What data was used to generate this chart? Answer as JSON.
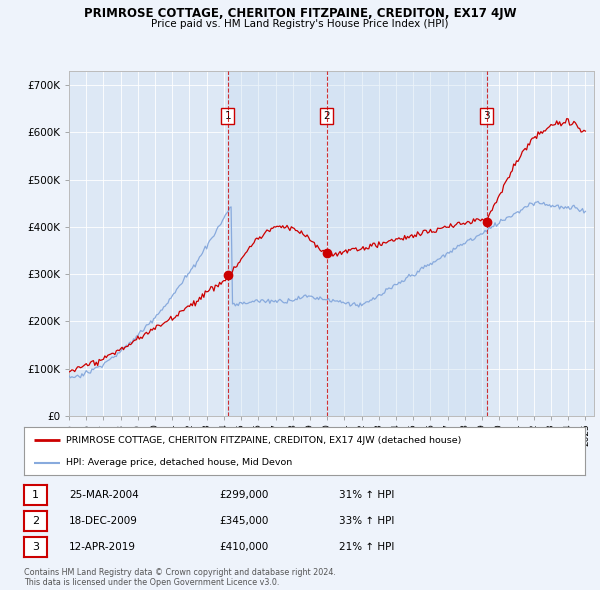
{
  "title": "PRIMROSE COTTAGE, CHERITON FITZPAINE, CREDITON, EX17 4JW",
  "subtitle": "Price paid vs. HM Land Registry's House Price Index (HPI)",
  "ylabel_ticks": [
    "£0",
    "£100K",
    "£200K",
    "£300K",
    "£400K",
    "£500K",
    "£600K",
    "£700K"
  ],
  "ytick_vals": [
    0,
    100000,
    200000,
    300000,
    400000,
    500000,
    600000,
    700000
  ],
  "ylim": [
    0,
    730000
  ],
  "xlim_start": 1995.0,
  "xlim_end": 2025.5,
  "transactions": [
    {
      "label": "1",
      "date": "25-MAR-2004",
      "price": "£299,000",
      "year": 2004.23,
      "pct": "31%",
      "arrow": "↑"
    },
    {
      "label": "2",
      "date": "18-DEC-2009",
      "price": "£345,000",
      "year": 2009.97,
      "pct": "33%",
      "arrow": "↑"
    },
    {
      "label": "3",
      "date": "12-APR-2019",
      "price": "£410,000",
      "year": 2019.28,
      "pct": "21%",
      "arrow": "↑"
    }
  ],
  "legend_entries": [
    {
      "label": "PRIMROSE COTTAGE, CHERITON FITZPAINE, CREDITON, EX17 4JW (detached house)",
      "color": "#cc0000"
    },
    {
      "label": "HPI: Average price, detached house, Mid Devon",
      "color": "#88aadd"
    }
  ],
  "footer": "Contains HM Land Registry data © Crown copyright and database right 2024.\nThis data is licensed under the Open Government Licence v3.0.",
  "bg_color": "#eef3fb",
  "plot_bg": "#dde8f5",
  "grid_color": "#ffffff",
  "vline_color": "#cc0000",
  "shade_color": "#c8d8ee",
  "xtick_years": [
    1995,
    1996,
    1997,
    1998,
    1999,
    2000,
    2001,
    2002,
    2003,
    2004,
    2005,
    2006,
    2007,
    2008,
    2009,
    2010,
    2011,
    2012,
    2013,
    2014,
    2015,
    2016,
    2017,
    2018,
    2019,
    2020,
    2021,
    2022,
    2023,
    2024,
    2025
  ]
}
